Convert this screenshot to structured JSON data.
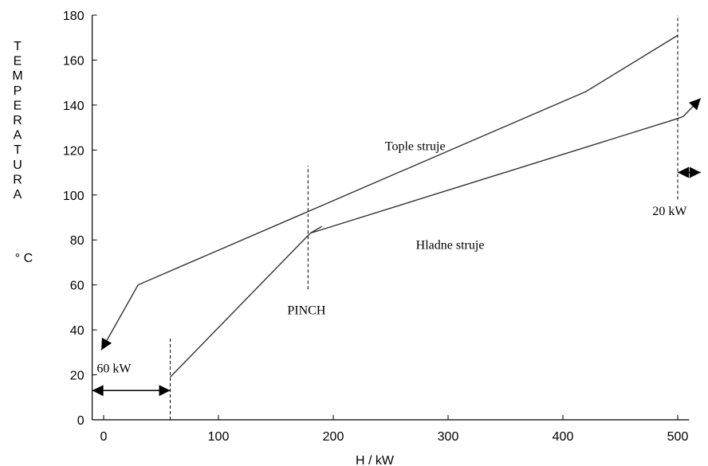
{
  "chart_data": {
    "type": "line",
    "xlabel": "H / kW",
    "ylabel": "TEMPERATURA",
    "yunit": "° C",
    "xlim": [
      -10,
      510
    ],
    "ylim": [
      0,
      180
    ],
    "xticks": [
      0,
      100,
      200,
      300,
      400,
      500
    ],
    "yticks": [
      0,
      20,
      40,
      60,
      80,
      100,
      120,
      140,
      160,
      180
    ],
    "series": [
      {
        "name": "Tople struje",
        "points": [
          [
            -2,
            31
          ],
          [
            30,
            60
          ],
          [
            420,
            146
          ],
          [
            500,
            171
          ]
        ]
      },
      {
        "name": "Hladne struje",
        "points": [
          [
            58,
            19
          ],
          [
            180,
            83
          ],
          [
            190,
            86
          ],
          [
            180,
            83
          ],
          [
            500,
            134
          ],
          [
            505,
            135
          ],
          [
            520,
            143
          ]
        ]
      }
    ],
    "annotations": [
      {
        "text": "Tople struje",
        "x": 245,
        "y": 120
      },
      {
        "text": "Hladne struje",
        "x": 272,
        "y": 76
      },
      {
        "text": "PINCH",
        "x": 160,
        "y": 47
      },
      {
        "text": "60  kW",
        "x": -6,
        "y": 21
      },
      {
        "text": "20 kW",
        "x": 478,
        "y": 91
      }
    ],
    "dashed_lines": [
      {
        "x": 58,
        "y0": 0,
        "y1": 37
      },
      {
        "x": 178,
        "y0": 58,
        "y1": 113
      },
      {
        "x": 500,
        "y0": 98,
        "y1": 180
      }
    ],
    "arrows": [
      {
        "x0": -10,
        "x1": 58,
        "y": 13,
        "label_ref": "60  kW"
      },
      {
        "x0": 500,
        "x1": 520,
        "y": 110,
        "label_ref": "20 kW"
      }
    ],
    "grid": false
  }
}
